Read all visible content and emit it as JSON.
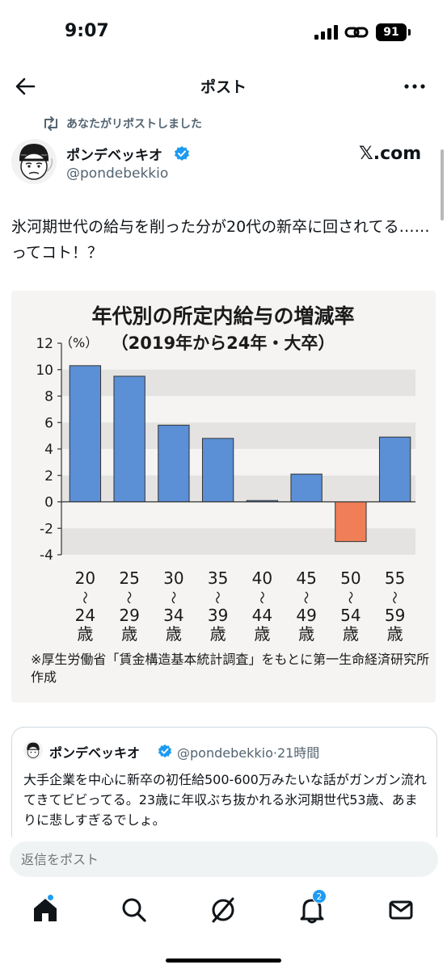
{
  "status": {
    "time": "9:07",
    "battery": "91"
  },
  "header": {
    "title": "ポスト"
  },
  "repost": {
    "text": "あなたがリポストしました"
  },
  "author": {
    "name": "ポンデベッキオ",
    "handle": "@pondebekkio",
    "source": "𝕏.com"
  },
  "post": {
    "text": "氷河期世代の給与を削った分が20代の新卒に回されてる……ってコト！？"
  },
  "chart_data": {
    "type": "bar",
    "title": "年代別の所定内給与の増減率",
    "subtitle": "（2019年から24年・大卒）",
    "ylabel": "（%）",
    "ylim": [
      -4,
      12
    ],
    "yticks": [
      12,
      10,
      8,
      6,
      4,
      2,
      0,
      -2,
      -4
    ],
    "categories": [
      "20〜24歳",
      "25〜29歳",
      "30〜34歳",
      "35〜39歳",
      "40〜44歳",
      "45〜49歳",
      "50〜54歳",
      "55〜59歳"
    ],
    "category_lines": [
      [
        "20",
        "〜",
        "24",
        "歳"
      ],
      [
        "25",
        "〜",
        "29",
        "歳"
      ],
      [
        "30",
        "〜",
        "34",
        "歳"
      ],
      [
        "35",
        "〜",
        "39",
        "歳"
      ],
      [
        "40",
        "〜",
        "44",
        "歳"
      ],
      [
        "45",
        "〜",
        "49",
        "歳"
      ],
      [
        "50",
        "〜",
        "54",
        "歳"
      ],
      [
        "55",
        "〜",
        "59",
        "歳"
      ]
    ],
    "values": [
      10.3,
      9.5,
      5.8,
      4.8,
      0.1,
      2.1,
      -3.0,
      4.9
    ],
    "positive_color": "#5b8fd6",
    "negative_color": "#f07f58",
    "grid": "alternating bands",
    "source_note": "※厚生労働省「賃金構造基本統計調査」をもとに第一生命経済研究所作成"
  },
  "quote": {
    "name": "ポンデベッキオ",
    "handle_time": "@pondebekkio·21時間",
    "text": "大手企業を中心に新卒の初任給500-600万みたいな話がガンガン流れてきてビビってる。23歳に年収ぶち抜かれる氷河期世代53歳、あまりに悲しすぎるでしょ。"
  },
  "reply": {
    "placeholder": "返信をポスト"
  },
  "tabs": {
    "notifications_count": "2"
  },
  "colors": {
    "accent": "#1d9bf0",
    "text": "#0f1419",
    "muted": "#536471"
  }
}
